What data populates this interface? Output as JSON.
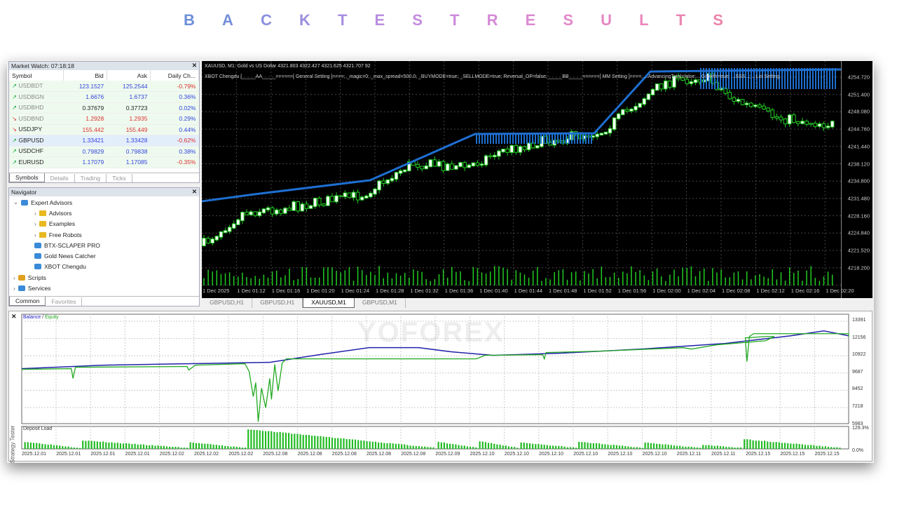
{
  "title_letters": [
    "B",
    "A",
    "C",
    "K",
    "T",
    "E",
    "S",
    "T",
    "R",
    "E",
    "S",
    "U",
    "L",
    "T",
    "S"
  ],
  "title_colors": [
    "#6c8fd8",
    "#7590da",
    "#8a8fdc",
    "#9a8fde",
    "#a98ee0",
    "#b88de0",
    "#c38cde",
    "#cc8bdc",
    "#d58ad8",
    "#dc89d2",
    "#e288cb",
    "#e687c3",
    "#e986bb",
    "#eb85b2",
    "#ec84aa"
  ],
  "market_watch": {
    "title": "Market Watch: 07:18:18",
    "columns": [
      "Symbol",
      "Bid",
      "Ask",
      "Daily Ch..."
    ],
    "rows": [
      {
        "dir": "up",
        "symbol": "USDBDT",
        "bid": "123.1527",
        "ask": "125.2544",
        "change": "-0.79%",
        "bidc": "#3344dd",
        "chc": "#e03030",
        "dim": true
      },
      {
        "dir": "up",
        "symbol": "USDBGN",
        "bid": "1.6676",
        "ask": "1.6737",
        "change": "0.36%",
        "bidc": "#3344dd",
        "chc": "#3344dd",
        "dim": true
      },
      {
        "dir": "up",
        "symbol": "USDBHD",
        "bid": "0.37679",
        "ask": "0.37723",
        "change": "0.02%",
        "bidc": "#222",
        "chc": "#3344dd",
        "dim": true
      },
      {
        "dir": "down",
        "symbol": "USDBND",
        "bid": "1.2928",
        "ask": "1.2935",
        "change": "0.29%",
        "bidc": "#e03030",
        "chc": "#3344dd",
        "dim": true
      },
      {
        "dir": "down",
        "symbol": "USDJPY",
        "bid": "155.442",
        "ask": "155.449",
        "change": "0.44%",
        "bidc": "#e03030",
        "chc": "#3344dd",
        "dim": false
      },
      {
        "dir": "up",
        "symbol": "GBPUSD",
        "bid": "1.33421",
        "ask": "1.33428",
        "change": "-0.62%",
        "bidc": "#3344dd",
        "chc": "#e03030",
        "dim": false,
        "selected": true
      },
      {
        "dir": "up",
        "symbol": "USDCHF",
        "bid": "0.79829",
        "ask": "0.79838",
        "change": "0.38%",
        "bidc": "#3344dd",
        "chc": "#3344dd",
        "dim": false
      },
      {
        "dir": "up",
        "symbol": "EURUSD",
        "bid": "1.17079",
        "ask": "1.17085",
        "change": "-0.35%",
        "bidc": "#3344dd",
        "chc": "#e03030",
        "dim": false
      }
    ],
    "tabs": [
      "Symbols",
      "Details",
      "Trading",
      "Ticks"
    ]
  },
  "navigator": {
    "title": "Navigator",
    "items": [
      {
        "label": "Expert Advisors",
        "level": 0,
        "icon": "expert-icon"
      },
      {
        "label": "Advisors",
        "level": 1,
        "icon": "folder-icon"
      },
      {
        "label": "Examples",
        "level": 1,
        "icon": "folder-icon"
      },
      {
        "label": "Free Robots",
        "level": 1,
        "icon": "folder-icon"
      },
      {
        "label": "BTX-SCLAPER PRO",
        "level": 1,
        "icon": "expert-icon"
      },
      {
        "label": "Gold News Catcher",
        "level": 1,
        "icon": "expert-icon"
      },
      {
        "label": "XBOT Chengdu",
        "level": 1,
        "icon": "expert-icon"
      },
      {
        "label": "Scripts",
        "level": 0,
        "icon": "script-icon"
      },
      {
        "label": "Services",
        "level": 0,
        "icon": "gear-icon"
      }
    ],
    "tabs": [
      "Common",
      "Favorites"
    ]
  },
  "chart": {
    "header": "XAUUSD, M1:  Gold vs US Dollar  4321.803 4322.427 4321.625 4321.707  92",
    "ea_line": "XBOT Chengdu [_____AA_____======[ General Setting ]====; _magic=0; _max_spread=500.0; _BUYMODE=true; _SELLMODE=true; Reversal_OP=false; _____BB_____======[ MM Setting ]====; ...AdvancingTotal=false; ...Growth=true; ...SSS...; ...Lot Setting",
    "price_labels": [
      "4254.720",
      "4251.400",
      "4248.080",
      "4244.760",
      "4241.440",
      "4238.120",
      "4234.800",
      "4231.480",
      "4228.160",
      "4224.840",
      "4221.520",
      "4218.200"
    ],
    "time_labels": [
      "1 Dec 2025",
      "1 Dec 01:12",
      "1 Dec 01:16",
      "1 Dec 01:20",
      "1 Dec 01:24",
      "1 Dec 01:28",
      "1 Dec 01:32",
      "1 Dec 01:36",
      "1 Dec 01:40",
      "1 Dec 01:44",
      "1 Dec 01:48",
      "1 Dec 01:52",
      "1 Dec 01:56",
      "1 Dec 02:00",
      "1 Dec 02:04",
      "1 Dec 02:08",
      "1 Dec 02:12",
      "1 Dec 02:16",
      "1 Dec 02:20"
    ],
    "tabs": [
      "GBPUSD,H1",
      "GBPUSD,H1",
      "XAUUSD,M1",
      "GBPUSD,M1"
    ],
    "active_tab": 2
  },
  "tester": {
    "side_label": "Strategy Tester",
    "legend_balance": "Balance",
    "legend_sep": " / ",
    "legend_equity": "Equity",
    "balance_color": "#22aa22",
    "equity_color": "#2222aa",
    "balance_axis": [
      "13391",
      "12156",
      "10922",
      "9687",
      "8452",
      "7218",
      "5983"
    ],
    "deposit_title": "Deposit Load",
    "deposit_axis": [
      "129.3%",
      "0.0%"
    ],
    "dates": [
      "2025.12.01",
      "2025.12.01",
      "2025.12.01",
      "2025.12.01",
      "2025.12.02",
      "2025.12.02",
      "2025.12.02",
      "2025.12.08",
      "2025.12.08",
      "2025.12.08",
      "2025.12.08",
      "2025.12.08",
      "2025.12.09",
      "2025.12.10",
      "2025.12.10",
      "2025.12.10",
      "2025.12.10",
      "2025.12.10",
      "2025.12.10",
      "2025.12.11",
      "2025.12.11",
      "2025.12.15",
      "2025.12.15",
      "2025.12.15"
    ]
  },
  "watermark": "YOFOREX"
}
